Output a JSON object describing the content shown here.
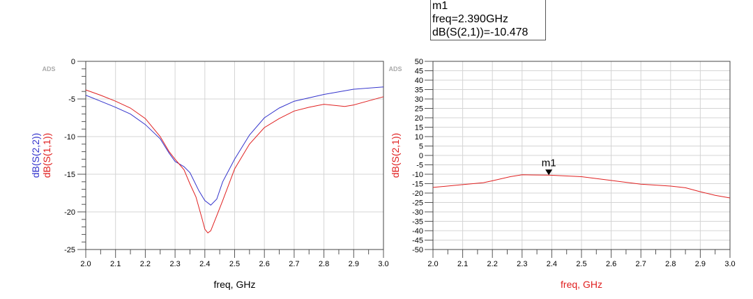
{
  "marker_readout": {
    "name": "m1",
    "freq_line": "freq=2.390GHz",
    "value_line": "dB(S(2,1))=-10.478"
  },
  "chart_data": [
    {
      "type": "line",
      "watermark": "ADS",
      "xlabel": "freq, GHz",
      "ylabel_series": [
        "dB(S(2,2))",
        "dB(S(1,1))"
      ],
      "xlim": [
        2.0,
        3.0
      ],
      "ylim": [
        -25,
        0
      ],
      "xticks": [
        "2.0",
        "2.1",
        "2.2",
        "2.3",
        "2.4",
        "2.5",
        "2.6",
        "2.7",
        "2.8",
        "2.9",
        "3.0"
      ],
      "yticks": [
        "0",
        "-5",
        "-10",
        "-15",
        "-20",
        "-25"
      ],
      "grid": true,
      "series": [
        {
          "name": "dB(S(2,2))",
          "color": "#3333cc",
          "x": [
            2.0,
            2.05,
            2.1,
            2.15,
            2.2,
            2.25,
            2.28,
            2.3,
            2.33,
            2.35,
            2.38,
            2.4,
            2.42,
            2.44,
            2.46,
            2.5,
            2.55,
            2.6,
            2.65,
            2.7,
            2.8,
            2.9,
            3.0
          ],
          "y": [
            -4.5,
            -5.3,
            -6.1,
            -7.0,
            -8.4,
            -10.3,
            -12.2,
            -13.3,
            -14.0,
            -14.8,
            -17.2,
            -18.5,
            -19.1,
            -18.3,
            -16.0,
            -13.0,
            -9.8,
            -7.5,
            -6.2,
            -5.3,
            -4.4,
            -3.7,
            -3.4
          ]
        },
        {
          "name": "dB(S(1,1))",
          "color": "#e02020",
          "x": [
            2.0,
            2.05,
            2.1,
            2.15,
            2.2,
            2.25,
            2.28,
            2.3,
            2.33,
            2.35,
            2.37,
            2.39,
            2.4,
            2.41,
            2.42,
            2.44,
            2.46,
            2.5,
            2.55,
            2.6,
            2.65,
            2.7,
            2.75,
            2.8,
            2.87,
            2.9,
            3.0
          ],
          "y": [
            -3.8,
            -4.5,
            -5.3,
            -6.2,
            -7.6,
            -10.0,
            -12.0,
            -13.0,
            -14.4,
            -16.3,
            -18.0,
            -20.8,
            -22.3,
            -22.8,
            -22.5,
            -20.5,
            -18.5,
            -14.3,
            -11.0,
            -8.8,
            -7.6,
            -6.6,
            -6.1,
            -5.7,
            -6.0,
            -5.8,
            -4.7
          ]
        }
      ]
    },
    {
      "type": "line",
      "watermark": "ADS",
      "xlabel": "freq, GHz",
      "ylabel": "dB(S(2,1))",
      "xlim": [
        2.0,
        3.0
      ],
      "ylim": [
        -50,
        50
      ],
      "xticks": [
        "2.0",
        "2.1",
        "2.2",
        "2.3",
        "2.4",
        "2.5",
        "2.6",
        "2.7",
        "2.8",
        "2.9",
        "3.0"
      ],
      "yticks": [
        "50",
        "45",
        "40",
        "35",
        "30",
        "25",
        "20",
        "15",
        "10",
        "5",
        "0",
        "-5",
        "-10",
        "-15",
        "-20",
        "-25",
        "-30",
        "-35",
        "-40",
        "-45",
        "-50"
      ],
      "grid": true,
      "series": [
        {
          "name": "dB(S(2,1))",
          "color": "#e02020",
          "x": [
            2.0,
            2.1,
            2.17,
            2.2,
            2.26,
            2.3,
            2.39,
            2.5,
            2.6,
            2.7,
            2.8,
            2.85,
            2.9,
            2.95,
            3.0
          ],
          "y": [
            -17.0,
            -15.5,
            -14.5,
            -13.5,
            -11.3,
            -10.3,
            -10.478,
            -11.3,
            -13.3,
            -15.3,
            -16.3,
            -17.2,
            -19.3,
            -21.2,
            -22.6
          ]
        }
      ],
      "markers": [
        {
          "label": "m1",
          "x": 2.39,
          "y": -10.478
        }
      ]
    }
  ]
}
